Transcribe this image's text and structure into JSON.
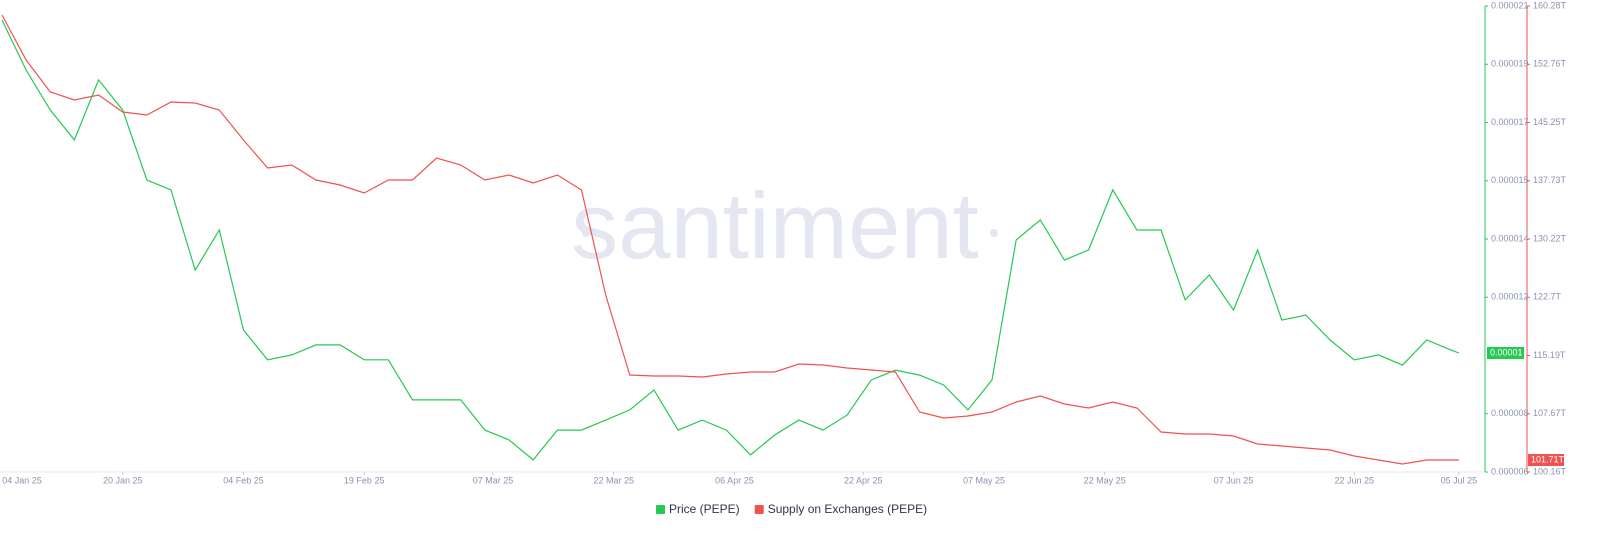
{
  "chart_data": {
    "type": "line",
    "watermark": "santiment",
    "x": [
      "2025-01-05",
      "2025-01-08",
      "2025-01-11",
      "2025-01-14",
      "2025-01-17",
      "2025-01-20",
      "2025-01-23",
      "2025-01-26",
      "2025-01-29",
      "2025-02-01",
      "2025-02-04",
      "2025-02-07",
      "2025-02-10",
      "2025-02-13",
      "2025-02-16",
      "2025-02-19",
      "2025-02-22",
      "2025-02-25",
      "2025-02-28",
      "2025-03-03",
      "2025-03-06",
      "2025-03-09",
      "2025-03-12",
      "2025-03-15",
      "2025-03-18",
      "2025-03-21",
      "2025-03-24",
      "2025-03-27",
      "2025-03-30",
      "2025-04-02",
      "2025-04-05",
      "2025-04-08",
      "2025-04-11",
      "2025-04-14",
      "2025-04-17",
      "2025-04-20",
      "2025-04-23",
      "2025-04-26",
      "2025-04-29",
      "2025-05-02",
      "2025-05-05",
      "2025-05-08",
      "2025-05-11",
      "2025-05-14",
      "2025-05-17",
      "2025-05-20",
      "2025-05-23",
      "2025-05-26",
      "2025-05-29",
      "2025-06-01",
      "2025-06-04",
      "2025-06-07",
      "2025-06-10",
      "2025-06-13",
      "2025-06-16",
      "2025-06-19",
      "2025-06-22",
      "2025-06-25",
      "2025-06-28",
      "2025-07-01",
      "2025-07-04",
      "2025-07-05"
    ],
    "xlim": [
      "2025-01-05",
      "2025-07-08"
    ],
    "xticks": [
      {
        "value": "2025-01-04",
        "label": "04 Jan 25"
      },
      {
        "value": "2025-01-20",
        "label": "20 Jan 25"
      },
      {
        "value": "2025-02-04",
        "label": "04 Feb 25"
      },
      {
        "value": "2025-02-19",
        "label": "19 Feb 25"
      },
      {
        "value": "2025-03-07",
        "label": "07 Mar 25"
      },
      {
        "value": "2025-03-22",
        "label": "22 Mar 25"
      },
      {
        "value": "2025-04-06",
        "label": "06 Apr 25"
      },
      {
        "value": "2025-04-22",
        "label": "22 Apr 25"
      },
      {
        "value": "2025-05-07",
        "label": "07 May 25"
      },
      {
        "value": "2025-05-22",
        "label": "22 May 25"
      },
      {
        "value": "2025-06-07",
        "label": "07 Jun 25"
      },
      {
        "value": "2025-06-22",
        "label": "22 Jun 25"
      },
      {
        "value": "2025-07-05",
        "label": "05 Jul 25"
      }
    ],
    "ylim": [
      6e-06,
      2.1e-05
    ],
    "yticks": [
      {
        "value": 2.1e-05,
        "label": "0.000021"
      },
      {
        "value": 1.9125e-05,
        "label": "0.000019"
      },
      {
        "value": 1.725e-05,
        "label": "0.000017"
      },
      {
        "value": 1.5375e-05,
        "label": "0.000015"
      },
      {
        "value": 1.35e-05,
        "label": "0.000014"
      },
      {
        "value": 1.1625e-05,
        "label": "0.000012"
      },
      {
        "value": 7.875e-06,
        "label": "0.000008"
      },
      {
        "value": 6e-06,
        "label": "0.000006"
      }
    ],
    "y2lim": [
      100.16,
      160.28
    ],
    "y2ticks": [
      {
        "value": 160.28,
        "label": "160.28T"
      },
      {
        "value": 152.76,
        "label": "152.76T"
      },
      {
        "value": 145.25,
        "label": "145.25T"
      },
      {
        "value": 137.73,
        "label": "137.73T"
      },
      {
        "value": 130.22,
        "label": "130.22T"
      },
      {
        "value": 122.7,
        "label": "122.7T"
      },
      {
        "value": 115.19,
        "label": "115.19T"
      },
      {
        "value": 107.67,
        "label": "107.67T"
      },
      {
        "value": 100.16,
        "label": "100.16T"
      }
    ],
    "series": [
      {
        "name": "Price (PEPE)",
        "color": "#26c953",
        "axis": "y",
        "last_label": "0.00001",
        "values": [
          2.055e-05,
          1.894e-05,
          1.765e-05,
          1.669e-05,
          1.862e-05,
          1.765e-05,
          1.54e-05,
          1.508e-05,
          1.25e-05,
          1.379e-05,
          1.057e-05,
          9.61e-06,
          9.77e-06,
          1.009e-05,
          1.009e-05,
          9.61e-06,
          9.61e-06,
          8.32e-06,
          8.32e-06,
          8.32e-06,
          7.35e-06,
          7.03e-06,
          6.39e-06,
          7.35e-06,
          7.35e-06,
          7.67e-06,
          8e-06,
          8.64e-06,
          7.35e-06,
          7.67e-06,
          7.35e-06,
          6.55e-06,
          7.19e-06,
          7.67e-06,
          7.35e-06,
          7.83e-06,
          8.96e-06,
          9.28e-06,
          9.12e-06,
          8.8e-06,
          8e-06,
          8.96e-06,
          1.347e-05,
          1.411e-05,
          1.282e-05,
          1.315e-05,
          1.508e-05,
          1.379e-05,
          1.379e-05,
          1.154e-05,
          1.234e-05,
          1.121e-05,
          1.315e-05,
          1.089e-05,
          1.105e-05,
          1.025e-05,
          9.61e-06,
          9.77e-06,
          9.44e-06,
          1.025e-05,
          9.93e-06,
          9.83e-06
        ]
      },
      {
        "name": "Supply on Exchanges (PEPE)",
        "color": "#f0524f",
        "axis": "y2",
        "last_label": "101.71T",
        "values": [
          159.12,
          153.31,
          149.18,
          148.15,
          148.8,
          146.6,
          146.22,
          147.89,
          147.76,
          146.86,
          142.99,
          139.38,
          139.77,
          137.83,
          137.19,
          136.15,
          137.83,
          137.83,
          140.67,
          139.77,
          137.83,
          138.48,
          137.44,
          138.48,
          136.54,
          123.0,
          112.67,
          112.54,
          112.54,
          112.42,
          112.8,
          113.06,
          113.06,
          114.09,
          113.96,
          113.58,
          113.32,
          113.06,
          107.9,
          107.13,
          107.38,
          107.9,
          109.19,
          109.96,
          108.93,
          108.42,
          109.19,
          108.42,
          105.32,
          105.06,
          105.06,
          104.8,
          103.77,
          103.51,
          103.26,
          103.0,
          102.22,
          101.71,
          101.19,
          101.71,
          101.71,
          101.71
        ]
      }
    ]
  }
}
